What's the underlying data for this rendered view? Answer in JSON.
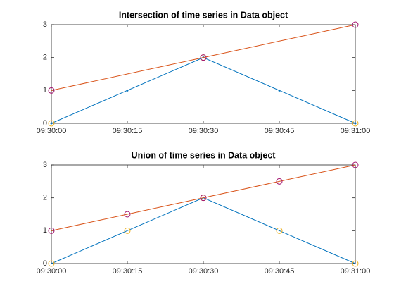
{
  "chart_data": [
    {
      "type": "line",
      "title": "Intersection of time series in Data object",
      "xlim": [
        "09:30:00",
        "09:31:00"
      ],
      "xticks": [
        "09:30:00",
        "09:30:15",
        "09:30:30",
        "09:30:45",
        "09:31:00"
      ],
      "ylim": [
        0,
        3
      ],
      "yticks": [
        0,
        1,
        2,
        3
      ],
      "series": [
        {
          "color": "#0072BD",
          "linestyle": "solid",
          "marker": "dot",
          "x": [
            "09:30:00",
            "09:30:15",
            "09:30:30",
            "09:30:45",
            "09:31:00"
          ],
          "values": [
            0,
            1,
            2,
            1,
            0
          ]
        },
        {
          "color": "#D95319",
          "linestyle": "solid",
          "marker": "none",
          "x": [
            "09:30:00",
            "09:30:30",
            "09:31:00"
          ],
          "values": [
            1,
            2,
            3
          ]
        },
        {
          "color": "#EDB120",
          "linestyle": "none",
          "marker": "circle",
          "x": [
            "09:30:00",
            "09:30:30",
            "09:31:00"
          ],
          "values": [
            0,
            2,
            0
          ]
        },
        {
          "color": "#A2146F",
          "linestyle": "none",
          "marker": "circle",
          "x": [
            "09:30:00",
            "09:30:30",
            "09:31:00"
          ],
          "values": [
            1,
            2,
            3
          ]
        }
      ]
    },
    {
      "type": "line",
      "title": "Union of time series in Data object",
      "xlim": [
        "09:30:00",
        "09:31:00"
      ],
      "xticks": [
        "09:30:00",
        "09:30:15",
        "09:30:30",
        "09:30:45",
        "09:31:00"
      ],
      "ylim": [
        0,
        3
      ],
      "yticks": [
        0,
        1,
        2,
        3
      ],
      "series": [
        {
          "color": "#0072BD",
          "linestyle": "solid",
          "marker": "none",
          "x": [
            "09:30:00",
            "09:30:15",
            "09:30:30",
            "09:30:45",
            "09:31:00"
          ],
          "values": [
            0,
            1,
            2,
            1,
            0
          ]
        },
        {
          "color": "#D95319",
          "linestyle": "solid",
          "marker": "none",
          "x": [
            "09:30:00",
            "09:30:15",
            "09:30:30",
            "09:30:45",
            "09:31:00"
          ],
          "values": [
            1,
            1.5,
            2,
            2.5,
            3
          ]
        },
        {
          "color": "#EDB120",
          "linestyle": "none",
          "marker": "circle",
          "x": [
            "09:30:00",
            "09:30:15",
            "09:30:30",
            "09:30:45",
            "09:31:00"
          ],
          "values": [
            0,
            1,
            2,
            1,
            0
          ]
        },
        {
          "color": "#A2146F",
          "linestyle": "none",
          "marker": "circle",
          "x": [
            "09:30:00",
            "09:30:15",
            "09:30:30",
            "09:30:45",
            "09:31:00"
          ],
          "values": [
            1,
            1.5,
            2,
            2.5,
            3
          ]
        }
      ]
    }
  ]
}
